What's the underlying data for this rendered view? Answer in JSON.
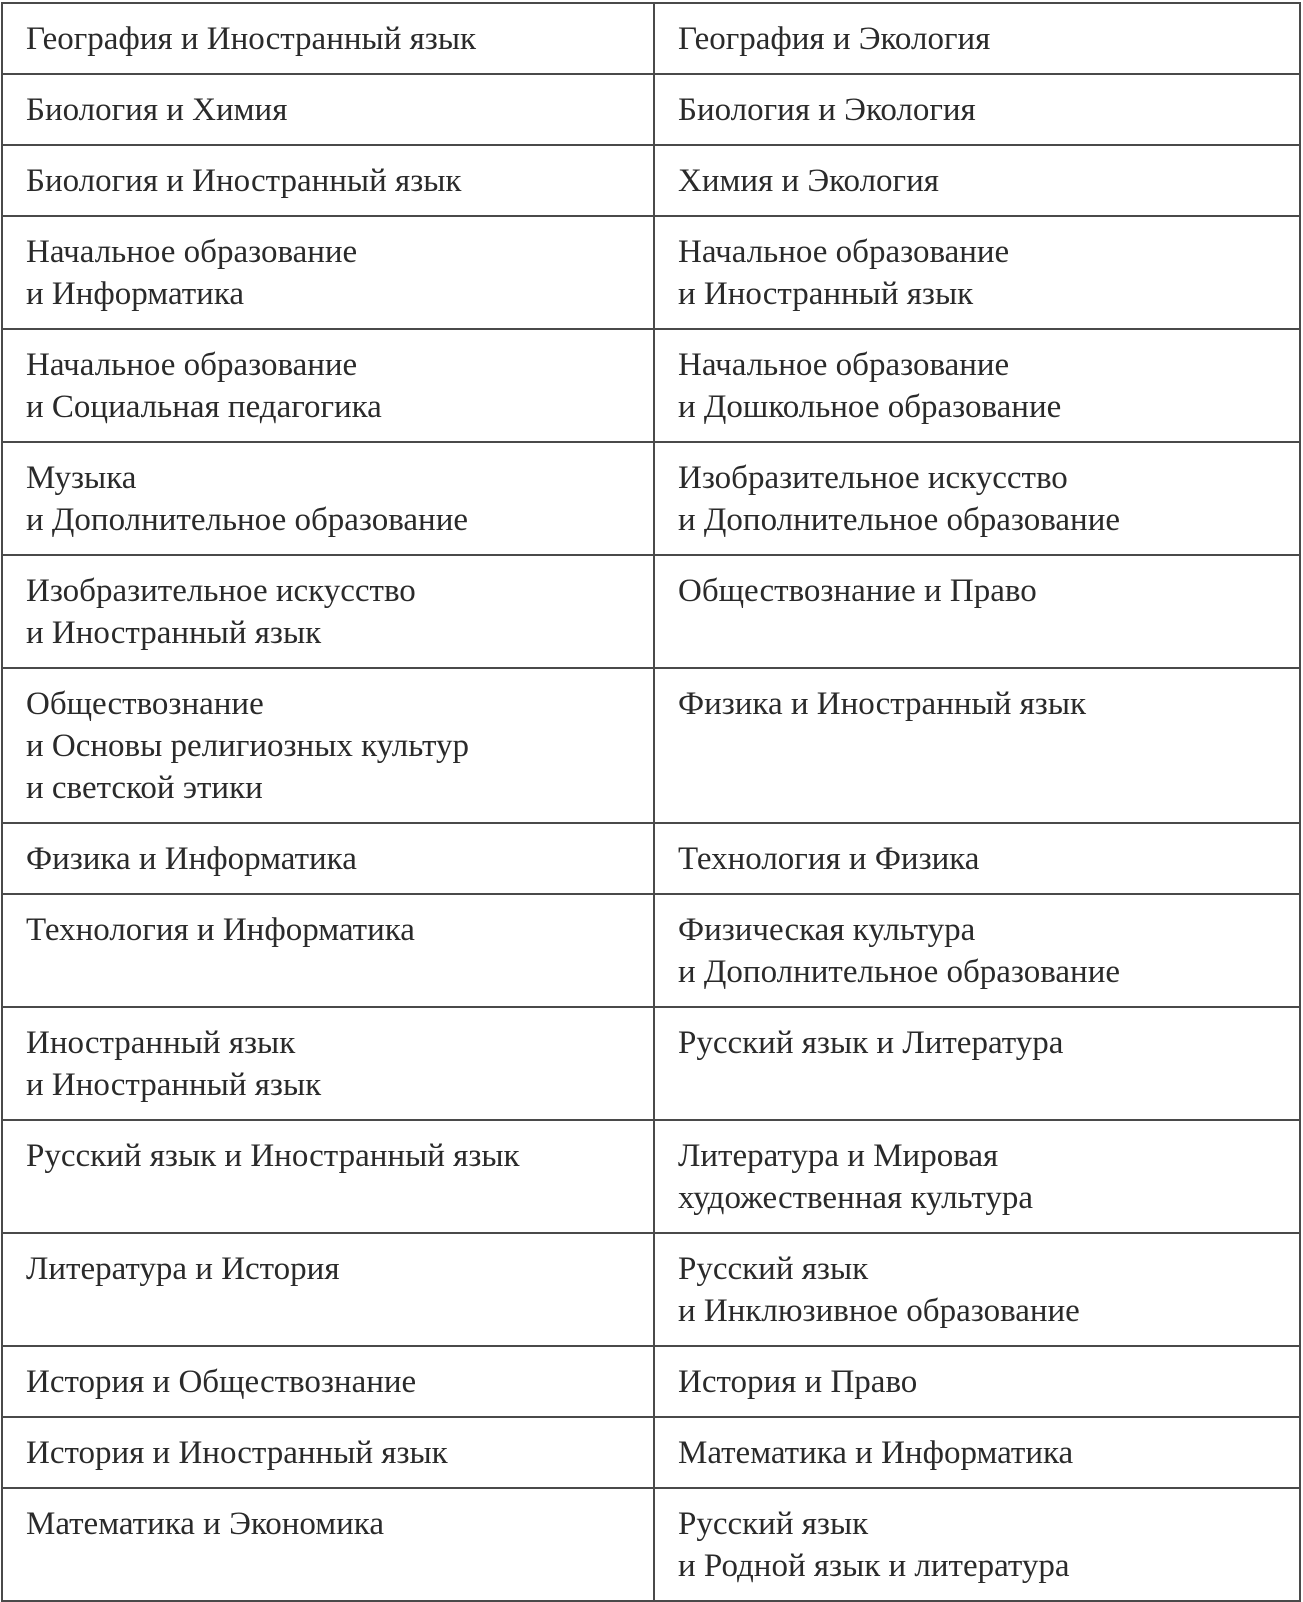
{
  "table": {
    "rows": [
      [
        [
          "География и Иностранный язык"
        ],
        [
          "География и Экология"
        ]
      ],
      [
        [
          "Биология и Химия"
        ],
        [
          "Биология и Экология"
        ]
      ],
      [
        [
          "Биология и Иностранный язык"
        ],
        [
          "Химия и Экология"
        ]
      ],
      [
        [
          "Начальное образование",
          "и Информатика"
        ],
        [
          "Начальное образование",
          "и Иностранный язык"
        ]
      ],
      [
        [
          "Начальное образование",
          "и Социальная педагогика"
        ],
        [
          "Начальное образование",
          "и Дошкольное образование"
        ]
      ],
      [
        [
          "Музыка",
          "и Дополнительное образование"
        ],
        [
          "Изобразительное искусство",
          "и Дополнительное образование"
        ]
      ],
      [
        [
          "Изобразительное искусство",
          "и Иностранный язык"
        ],
        [
          "Обществознание и Право"
        ]
      ],
      [
        [
          "Обществознание",
          "и Основы религиозных культур",
          "и светской этики"
        ],
        [
          "Физика и Иностранный язык"
        ]
      ],
      [
        [
          "Физика и Информатика"
        ],
        [
          "Технология и Физика"
        ]
      ],
      [
        [
          "Технология и Информатика"
        ],
        [
          "Физическая культура",
          "и Дополнительное образование"
        ]
      ],
      [
        [
          "Иностранный язык",
          "и Иностранный язык"
        ],
        [
          "Русский язык и Литература"
        ]
      ],
      [
        [
          "Русский язык и Иностранный язык"
        ],
        [
          "Литература и Мировая",
          "художественная культура"
        ]
      ],
      [
        [
          "Литература и История"
        ],
        [
          "Русский язык",
          "и Инклюзивное образование"
        ]
      ],
      [
        [
          "История и Обществознание"
        ],
        [
          "История и Право"
        ]
      ],
      [
        [
          "История и Иностранный язык"
        ],
        [
          "Математика и Информатика"
        ]
      ],
      [
        [
          "Математика и Экономика"
        ],
        [
          "Русский язык",
          "и Родной язык и литература"
        ]
      ]
    ]
  }
}
